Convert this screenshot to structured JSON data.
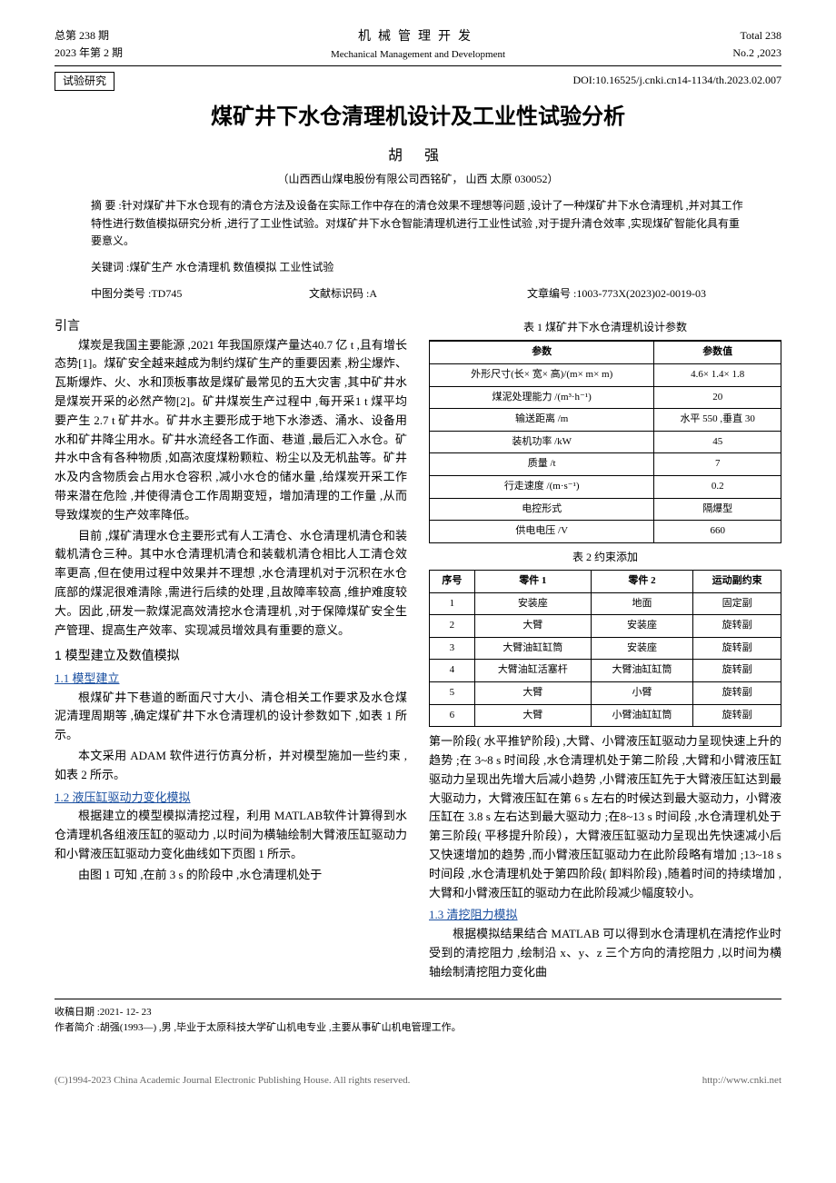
{
  "header": {
    "left_line1": "总第 238 期",
    "left_line2": "2023 年第 2 期",
    "center_cn": "机械管理开发",
    "center_en": "Mechanical Management and Development",
    "right_line1": "Total 238",
    "right_line2": "No.2 ,2023"
  },
  "doi_row": {
    "research_label": "试验研究",
    "doi": "DOI:10.16525/j.cnki.cn14-1134/th.2023.02.007"
  },
  "title": "煤矿井下水仓清理机设计及工业性试验分析",
  "author": "胡 强",
  "affiliation": "（山西西山煤电股份有限公司西铭矿，  山西  太原  030052）",
  "abstract": {
    "label": "摘  要",
    "text": ":针对煤矿井下水仓现有的清仓方法及设备在实际工作中存在的清仓效果不理想等问题 ,设计了一种煤矿井下水仓清理机 ,并对其工作特性进行数值模拟研究分析 ,进行了工业性试验。对煤矿井下水仓智能清理机进行工业性试验 ,对于提升清仓效率 ,实现煤矿智能化具有重要意义。"
  },
  "keywords": {
    "label": "关键词",
    "text": ":煤矿生产  水仓清理机  数值模拟  工业性试验"
  },
  "class": {
    "clc": "中图分类号 :TD745",
    "doc_code": "文献标识码 :A",
    "article_id": "文章编号 :1003-773X(2023)02-0019-03"
  },
  "intro_heading": "引言",
  "intro_p1": "煤炭是我国主要能源 ,2021 年我国原煤产量达40.7 亿 t ,且有增长态势[1]。煤矿安全越来越成为制约煤矿生产的重要因素 ,粉尘爆炸、瓦斯爆炸、火、水和顶板事故是煤矿最常见的五大灾害 ,其中矿井水是煤炭开采的必然产物[2]。矿井煤炭生产过程中 ,每开采1 t 煤平均要产生 2.7 t 矿井水。矿井水主要形成于地下水渗透、涌水、设备用水和矿井降尘用水。矿井水流经各工作面、巷道 ,最后汇入水仓。矿井水中含有各种物质 ,如高浓度煤粉颗粒、粉尘以及无机盐等。矿井水及内含物质会占用水仓容积 ,减小水仓的储水量 ,给煤炭开采工作带来潜在危险 ,并使得清仓工作周期变短，增加清理的工作量 ,从而导致煤炭的生产效率降低。",
  "intro_p2": "目前 ,煤矿清理水仓主要形式有人工清仓、水仓清理机清仓和装载机清仓三种。其中水仓清理机清仓和装载机清仓相比人工清仓效率更高 ,但在使用过程中效果并不理想 ,水仓清理机对于沉积在水仓底部的煤泥很难清除 ,需进行后续的处理 ,且故障率较高 ,维护难度较大。因此 ,研发一款煤泥高效清挖水仓清理机 ,对于保障煤矿安全生产管理、提高生产效率、实现减员增效具有重要的意义。",
  "sec1": "1  模型建立及数值模拟",
  "sub11": "1.1  模型建立",
  "s11_p1": "根煤矿井下巷道的断面尺寸大小、清仓相关工作要求及水仓煤泥清理周期等 ,确定煤矿井下水仓清理机的设计参数如下 ,如表 1 所示。",
  "s11_p2": "本文采用 ADAM 软件进行仿真分析，并对模型施加一些约束 ,如表 2 所示。",
  "sub12": "1.2  液压缸驱动力变化模拟",
  "s12_p1": "根据建立的模型模拟清挖过程，利用 MATLAB软件计算得到水仓清理机各组液压缸的驱动力 ,以时间为横轴绘制大臂液压缸驱动力和小臂液压缸驱动力变化曲线如下页图 1 所示。",
  "s12_p2": "由图 1 可知 ,在前 3 s 的阶段中 ,水仓清理机处于",
  "table1": {
    "caption": "表 1  煤矿井下水仓清理机设计参数",
    "headers": [
      "参数",
      "参数值"
    ],
    "rows": [
      [
        "外形尺寸(长× 宽× 高)/(m× m× m)",
        "4.6× 1.4× 1.8"
      ],
      [
        "煤泥处理能力 /(m³·h⁻¹)",
        "20"
      ],
      [
        "输送距离 /m",
        "水平 550 ,垂直 30"
      ],
      [
        "装机功率 /kW",
        "45"
      ],
      [
        "质量 /t",
        "7"
      ],
      [
        "行走速度 /(m·s⁻¹)",
        "0.2"
      ],
      [
        "电控形式",
        "隔爆型"
      ],
      [
        "供电电压 /V",
        "660"
      ]
    ]
  },
  "table2": {
    "caption": "表 2  约束添加",
    "headers": [
      "序号",
      "零件 1",
      "零件 2",
      "运动副约束"
    ],
    "rows": [
      [
        "1",
        "安装座",
        "地面",
        "固定副"
      ],
      [
        "2",
        "大臂",
        "安装座",
        "旋转副"
      ],
      [
        "3",
        "大臂油缸缸筒",
        "安装座",
        "旋转副"
      ],
      [
        "4",
        "大臂油缸活塞杆",
        "大臂油缸缸筒",
        "旋转副"
      ],
      [
        "5",
        "大臂",
        "小臂",
        "旋转副"
      ],
      [
        "6",
        "大臂",
        "小臂油缸缸筒",
        "旋转副"
      ]
    ]
  },
  "col2_p1": "第一阶段( 水平推铲阶段) ,大臂、小臂液压缸驱动力呈现快速上升的趋势 ;在 3~8 s 时间段 ,水仓清理机处于第二阶段 ,大臂和小臂液压缸驱动力呈现出先增大后减小趋势 ,小臂液压缸先于大臂液压缸达到最大驱动力，大臂液压缸在第 6 s 左右的时候达到最大驱动力，小臂液压缸在 3.8 s 左右达到最大驱动力 ;在8~13 s 时间段 ,水仓清理机处于第三阶段( 平移提升阶段），大臂液压缸驱动力呈现出先快速减小后又快速增加的趋势 ,而小臂液压缸驱动力在此阶段略有增加 ;13~18 s 时间段 ,水仓清理机处于第四阶段( 卸料阶段) ,随着时间的持续增加 ,大臂和小臂液压缸的驱动力在此阶段减少幅度较小。",
  "sub13": "1.3  清挖阻力模拟",
  "s13_p1": "根据模拟结果结合 MATLAB 可以得到水仓清理机在清挖作业时受到的清挖阻力 ,绘制沿 x、y、z 三个方向的清挖阻力 ,以时间为横轴绘制清挖阻力变化曲",
  "footer": {
    "received": "收稿日期 :2021- 12- 23",
    "author_info": "作者简介 :胡强(1993—) ,男 ,毕业于太原科技大学矿山机电专业 ,主要从事矿山机电管理工作。"
  },
  "copyright": {
    "left": "(C)1994-2023 China Academic Journal Electronic Publishing House. All rights reserved.",
    "right": "http://www.cnki.net"
  }
}
